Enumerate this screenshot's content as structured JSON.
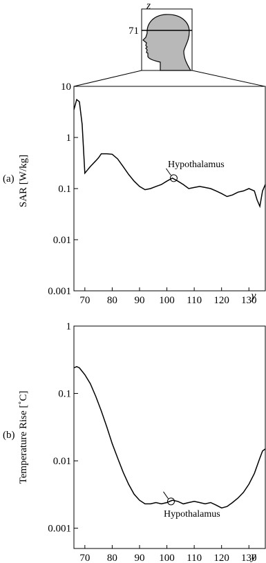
{
  "inset": {
    "z_axis_label": "z",
    "slice_label": "71",
    "colors": {
      "head_fill": "#b8b8b8",
      "outline": "#000000"
    }
  },
  "chart_data": [
    {
      "type": "line",
      "panel_label": "(a)",
      "title": "",
      "xlabel": "y",
      "ylabel": "SAR [W/kg]",
      "yscale": "log",
      "xlim": [
        66,
        136
      ],
      "ylim": [
        0.001,
        10
      ],
      "xticks": [
        70,
        80,
        90,
        100,
        110,
        120,
        130
      ],
      "xtick_labels": [
        "70",
        "80",
        "90",
        "100",
        "110",
        "120",
        "130"
      ],
      "yticks": [
        10,
        1,
        0.1,
        0.01,
        0.001
      ],
      "ytick_labels": [
        "10",
        "1",
        "0.1",
        "0.01",
        "0.001"
      ],
      "grid": false,
      "annotation": {
        "text": "Hypothalamus",
        "x": 102.5,
        "y": 0.16
      },
      "series": [
        {
          "x": [
            66,
            67,
            68,
            69,
            70,
            72,
            74,
            75,
            76,
            78,
            80,
            82,
            84,
            86,
            88,
            90,
            92,
            94,
            96,
            98,
            100,
            102,
            104,
            106,
            108,
            110,
            112,
            114,
            116,
            118,
            120,
            122,
            124,
            126,
            128,
            130,
            132,
            133,
            134,
            135,
            136
          ],
          "values": [
            3.5,
            5.5,
            5.0,
            1.8,
            0.2,
            0.27,
            0.35,
            0.4,
            0.48,
            0.48,
            0.47,
            0.38,
            0.27,
            0.19,
            0.14,
            0.11,
            0.095,
            0.1,
            0.11,
            0.12,
            0.14,
            0.16,
            0.14,
            0.12,
            0.1,
            0.105,
            0.11,
            0.105,
            0.1,
            0.09,
            0.08,
            0.07,
            0.075,
            0.085,
            0.09,
            0.1,
            0.09,
            0.06,
            0.045,
            0.09,
            0.12
          ]
        }
      ]
    },
    {
      "type": "line",
      "panel_label": "(b)",
      "title": "",
      "xlabel": "y",
      "ylabel": "Temperature Rise [˚C]",
      "yscale": "log",
      "xlim": [
        66,
        136
      ],
      "ylim": [
        0.0005,
        1
      ],
      "xticks": [
        70,
        80,
        90,
        100,
        110,
        120,
        130
      ],
      "xtick_labels": [
        "70",
        "80",
        "90",
        "100",
        "110",
        "120",
        "130"
      ],
      "yticks": [
        1,
        0.1,
        0.01,
        0.001
      ],
      "ytick_labels": [
        "1",
        "0.1",
        "0.01",
        "0.001"
      ],
      "grid": false,
      "annotation": {
        "text": "Hypothalamus",
        "x": 101.5,
        "y": 0.0025
      },
      "series": [
        {
          "x": [
            66,
            67,
            68,
            70,
            72,
            74,
            76,
            78,
            80,
            82,
            84,
            86,
            88,
            90,
            92,
            94,
            96,
            98,
            100,
            102,
            104,
            106,
            108,
            110,
            112,
            114,
            116,
            118,
            120,
            122,
            124,
            126,
            128,
            130,
            132,
            134,
            135,
            136
          ],
          "values": [
            0.24,
            0.25,
            0.24,
            0.19,
            0.14,
            0.09,
            0.055,
            0.032,
            0.018,
            0.011,
            0.0068,
            0.0045,
            0.0032,
            0.0026,
            0.0023,
            0.0023,
            0.0024,
            0.0023,
            0.0024,
            0.0026,
            0.0025,
            0.0023,
            0.0024,
            0.0025,
            0.0024,
            0.0023,
            0.0024,
            0.0022,
            0.002,
            0.0021,
            0.0024,
            0.0028,
            0.0034,
            0.0045,
            0.0065,
            0.011,
            0.014,
            0.015
          ]
        }
      ]
    }
  ]
}
